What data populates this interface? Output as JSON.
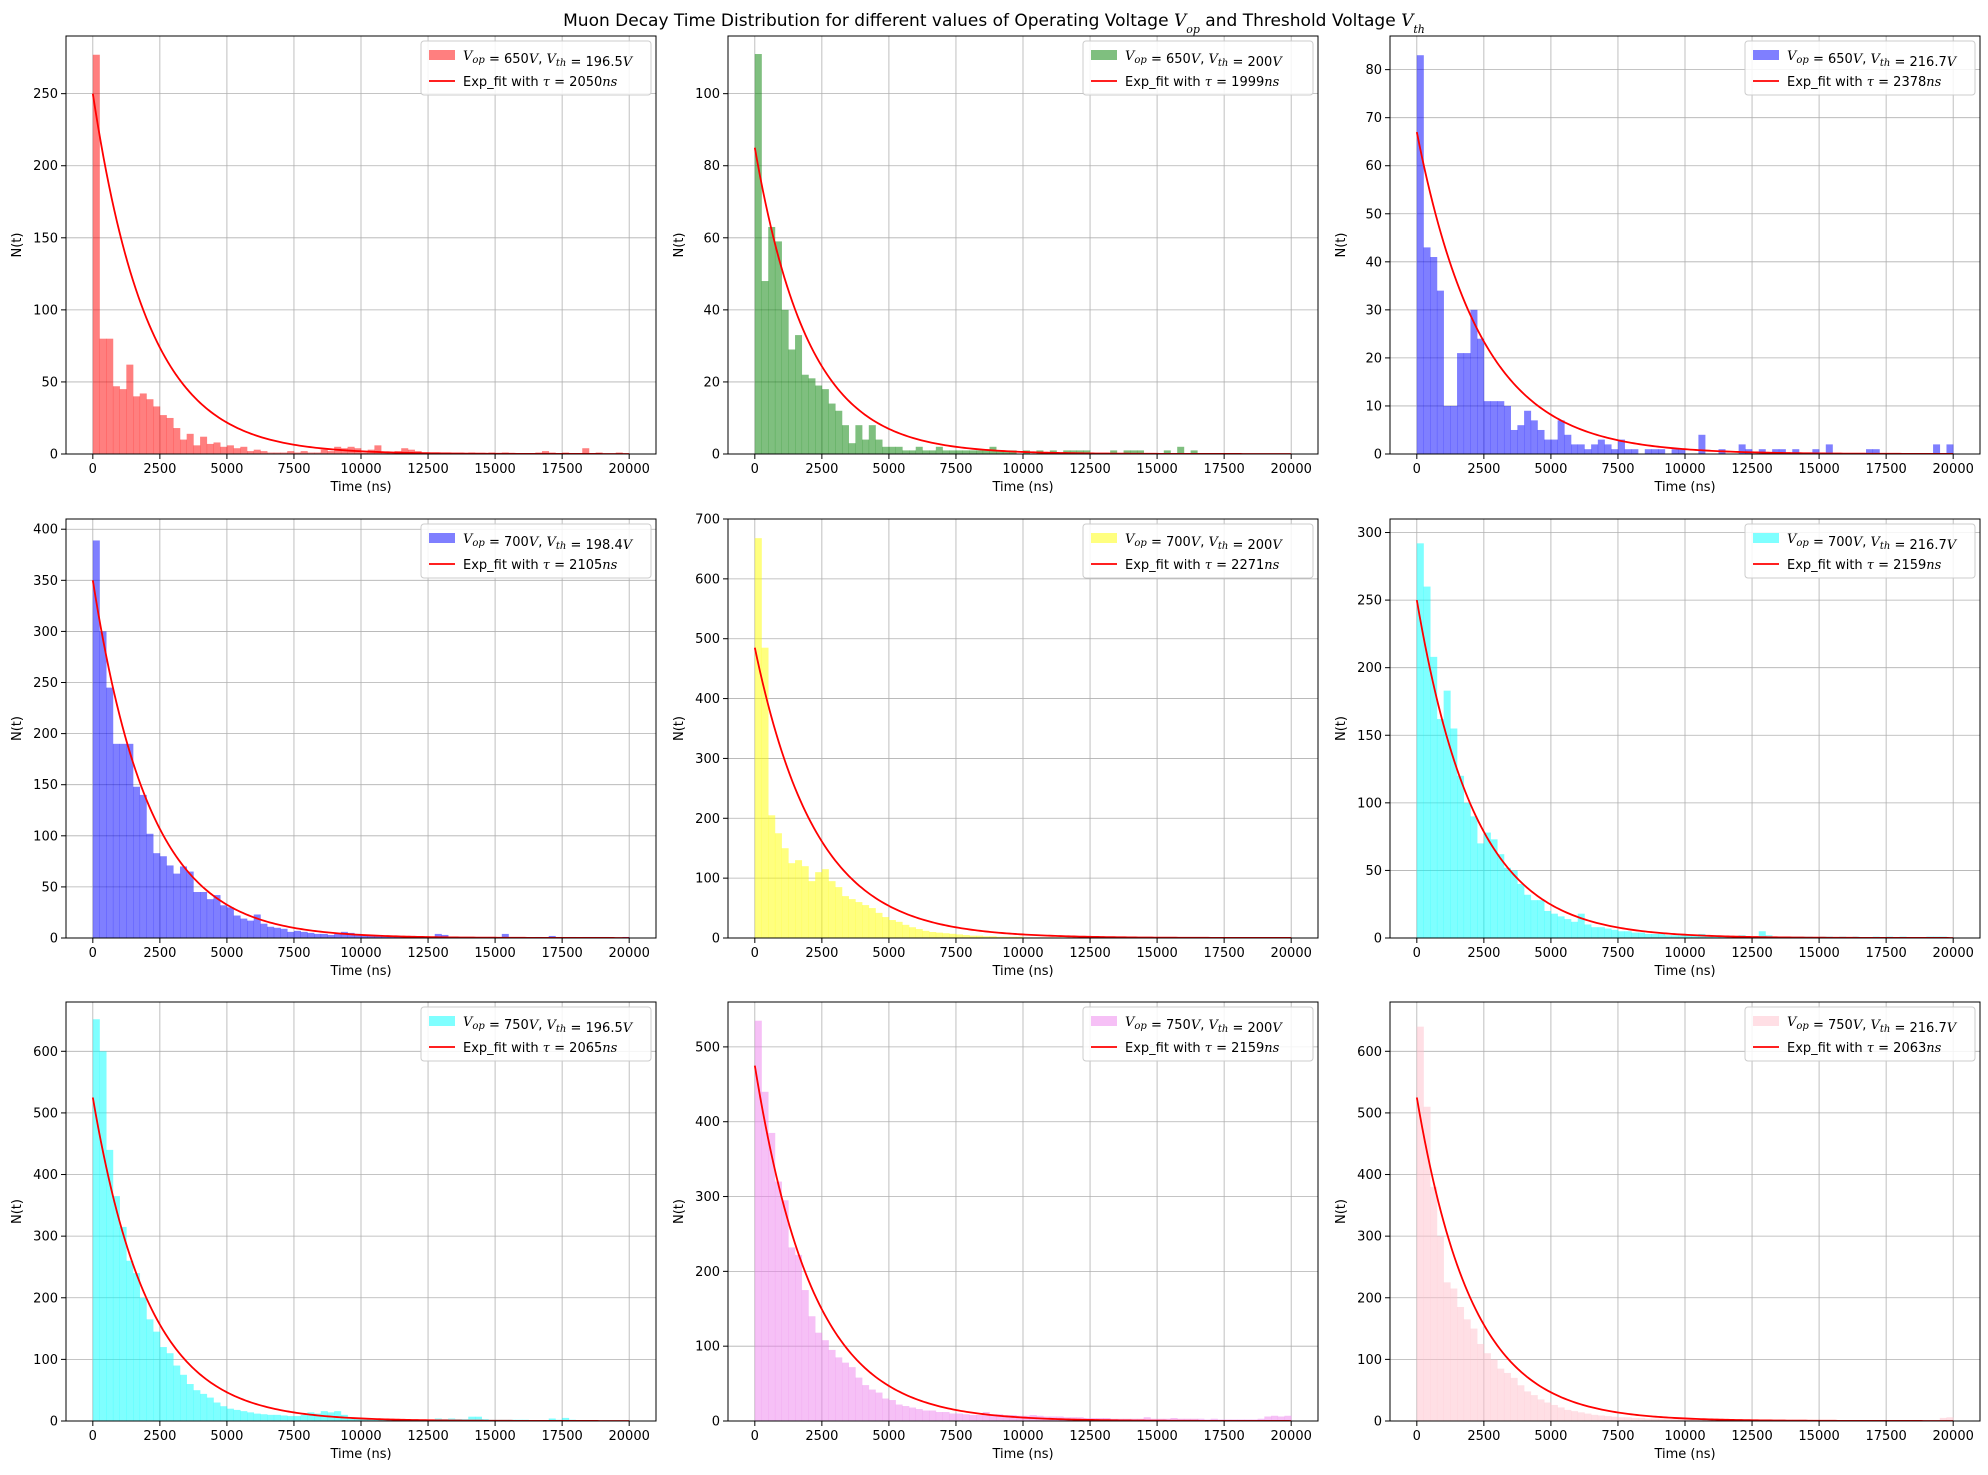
{
  "figure_title": "Muon Decay Time Distribution for different values of Operating Voltage V_op and Threshold Voltage V_th",
  "title_parts": {
    "pre": "Muon Decay Time Distribution for different values of Operating Voltage ",
    "v1": "V",
    "s1": "op",
    "mid": " and Threshold Voltage ",
    "v2": "V",
    "s2": "th"
  },
  "fit_color": "#ff0000",
  "chart_data": [
    {
      "type": "bar",
      "xlabel": "Time (ns)",
      "ylabel": "N(t)",
      "xlim": [
        -1000,
        21000
      ],
      "ylim": [
        0,
        290
      ],
      "xticks": [
        0,
        2500,
        5000,
        7500,
        10000,
        12500,
        15000,
        17500,
        20000
      ],
      "yticks": [
        0,
        50,
        100,
        150,
        200,
        250
      ],
      "grid": true,
      "legend": "top-right",
      "color": "#ff0000",
      "alpha": 0.5,
      "legend_entries": {
        "hist": {
          "vop": "650",
          "vth": "196.5"
        },
        "fit": {
          "prefix": "Exp_fit with ",
          "tau": "2050"
        }
      },
      "fit": {
        "A": 250,
        "tau": 2050
      },
      "bin_start": 0,
      "bin_width": 250,
      "values": [
        277,
        80,
        80,
        47,
        45,
        62,
        40,
        42,
        38,
        33,
        27,
        25,
        18,
        10,
        14,
        6,
        12,
        7,
        8,
        5,
        6,
        4,
        5,
        2,
        3,
        2,
        1,
        1,
        1,
        2,
        1,
        2,
        1,
        1,
        3,
        2,
        5,
        4,
        5,
        4,
        1,
        3,
        6,
        1,
        1,
        2,
        4,
        3,
        2,
        1,
        0,
        0,
        0,
        0,
        0,
        0,
        1,
        0,
        0,
        1,
        0,
        1,
        0,
        0,
        0,
        0,
        1,
        2,
        1,
        0,
        1,
        0,
        0,
        4,
        0,
        1,
        0,
        0,
        1,
        0
      ]
    },
    {
      "type": "bar",
      "xlabel": "Time (ns)",
      "ylabel": "N(t)",
      "xlim": [
        -1000,
        21000
      ],
      "ylim": [
        0,
        116
      ],
      "xticks": [
        0,
        2500,
        5000,
        7500,
        10000,
        12500,
        15000,
        17500,
        20000
      ],
      "yticks": [
        0,
        20,
        40,
        60,
        80,
        100
      ],
      "grid": true,
      "legend": "top-right",
      "color": "#008000",
      "alpha": 0.5,
      "legend_entries": {
        "hist": {
          "vop": "650",
          "vth": "200"
        },
        "fit": {
          "prefix": "Exp_fit with ",
          "tau": "1999"
        }
      },
      "fit": {
        "A": 85,
        "tau": 1999
      },
      "bin_start": 0,
      "bin_width": 250,
      "values": [
        111,
        48,
        63,
        59,
        40,
        29,
        33,
        22,
        21,
        19,
        18,
        14,
        12,
        8,
        3,
        8,
        4,
        8,
        4,
        2,
        2,
        2,
        1,
        1,
        2,
        1,
        1,
        2,
        1,
        1,
        1,
        1,
        1,
        1,
        1,
        2,
        1,
        1,
        1,
        0,
        1,
        0,
        1,
        0,
        1,
        0,
        1,
        1,
        1,
        1,
        0,
        0,
        0,
        1,
        0,
        1,
        1,
        1,
        0,
        0,
        0,
        1,
        0,
        2,
        0,
        1,
        0,
        0,
        0,
        0,
        0,
        0,
        0,
        0,
        0,
        0,
        0,
        0,
        0,
        0
      ]
    },
    {
      "type": "bar",
      "xlabel": "Time (ns)",
      "ylabel": "N(t)",
      "xlim": [
        -1000,
        21000
      ],
      "ylim": [
        0,
        87
      ],
      "xticks": [
        0,
        2500,
        5000,
        7500,
        10000,
        12500,
        15000,
        17500,
        20000
      ],
      "yticks": [
        0,
        10,
        20,
        30,
        40,
        50,
        60,
        70,
        80
      ],
      "grid": true,
      "legend": "top-right",
      "color": "#0000ff",
      "alpha": 0.5,
      "legend_entries": {
        "hist": {
          "vop": "650",
          "vth": "216.7"
        },
        "fit": {
          "prefix": "Exp_fit with ",
          "tau": "2378"
        }
      },
      "fit": {
        "A": 67,
        "tau": 2378
      },
      "bin_start": 0,
      "bin_width": 250,
      "values": [
        83,
        43,
        41,
        34,
        10,
        10,
        21,
        21,
        30,
        24,
        11,
        11,
        11,
        10,
        5,
        6,
        9,
        7,
        5,
        3,
        3,
        7,
        4,
        2,
        2,
        1,
        2,
        3,
        2,
        1,
        3,
        1,
        1,
        0,
        1,
        1,
        1,
        0,
        1,
        1,
        0,
        0,
        4,
        0,
        0,
        1,
        0,
        0,
        2,
        1,
        0,
        1,
        0,
        1,
        1,
        0,
        1,
        0,
        0,
        1,
        0,
        2,
        0,
        0,
        0,
        0,
        0,
        1,
        1,
        0,
        0,
        0,
        0,
        0,
        0,
        0,
        0,
        2,
        0,
        2
      ]
    },
    {
      "type": "bar",
      "xlabel": "Time (ns)",
      "ylabel": "N(t)",
      "xlim": [
        -1000,
        21000
      ],
      "ylim": [
        0,
        410
      ],
      "xticks": [
        0,
        2500,
        5000,
        7500,
        10000,
        12500,
        15000,
        17500,
        20000
      ],
      "yticks": [
        0,
        50,
        100,
        150,
        200,
        250,
        300,
        350,
        400
      ],
      "grid": true,
      "legend": "top-right",
      "color": "#0000ff",
      "alpha": 0.5,
      "legend_entries": {
        "hist": {
          "vop": "700",
          "vth": "198.4"
        },
        "fit": {
          "prefix": "Exp_fit with ",
          "tau": "2105"
        }
      },
      "fit": {
        "A": 350,
        "tau": 2105
      },
      "bin_start": 0,
      "bin_width": 250,
      "values": [
        389,
        300,
        245,
        190,
        190,
        190,
        148,
        140,
        102,
        83,
        80,
        71,
        63,
        70,
        65,
        45,
        45,
        38,
        42,
        32,
        30,
        22,
        19,
        17,
        23,
        14,
        11,
        10,
        9,
        6,
        7,
        6,
        5,
        4,
        4,
        3,
        4,
        6,
        5,
        4,
        3,
        3,
        2,
        2,
        2,
        1,
        1,
        2,
        1,
        1,
        1,
        4,
        3,
        1,
        1,
        1,
        0,
        1,
        0,
        1,
        0,
        4,
        0,
        0,
        0,
        0,
        1,
        0,
        2,
        1,
        0,
        1,
        0,
        1,
        1,
        1,
        1,
        0,
        0,
        1
      ]
    },
    {
      "type": "bar",
      "xlabel": "Time (ns)",
      "ylabel": "N(t)",
      "xlim": [
        -1000,
        21000
      ],
      "ylim": [
        0,
        700
      ],
      "xticks": [
        0,
        2500,
        5000,
        7500,
        10000,
        12500,
        15000,
        17500,
        20000
      ],
      "yticks": [
        0,
        100,
        200,
        300,
        400,
        500,
        600,
        700
      ],
      "grid": true,
      "legend": "top-right",
      "color": "#ffff00",
      "alpha": 0.5,
      "legend_entries": {
        "hist": {
          "vop": "700",
          "vth": "200"
        },
        "fit": {
          "prefix": "Exp_fit with ",
          "tau": "2271"
        }
      },
      "fit": {
        "A": 485,
        "tau": 2271
      },
      "bin_start": 0,
      "bin_width": 250,
      "values": [
        668,
        485,
        205,
        175,
        150,
        125,
        130,
        120,
        95,
        110,
        115,
        95,
        85,
        70,
        65,
        60,
        55,
        50,
        42,
        35,
        30,
        27,
        22,
        18,
        15,
        12,
        10,
        9,
        8,
        7,
        6,
        5,
        4,
        4,
        3,
        3,
        2,
        2,
        2,
        2,
        1,
        1,
        1,
        1,
        1,
        1,
        1,
        1,
        1,
        0,
        0,
        0,
        0,
        0,
        0,
        0,
        0,
        0,
        0,
        0,
        0,
        0,
        0,
        0,
        0,
        0,
        0,
        0,
        0,
        0,
        0,
        0,
        0,
        0,
        0,
        0,
        0,
        0,
        0,
        0
      ]
    },
    {
      "type": "bar",
      "xlabel": "Time (ns)",
      "ylabel": "N(t)",
      "xlim": [
        -1000,
        21000
      ],
      "ylim": [
        0,
        310
      ],
      "xticks": [
        0,
        2500,
        5000,
        7500,
        10000,
        12500,
        15000,
        17500,
        20000
      ],
      "yticks": [
        0,
        50,
        100,
        150,
        200,
        250,
        300
      ],
      "grid": true,
      "legend": "top-right",
      "color": "#00ffff",
      "alpha": 0.5,
      "legend_entries": {
        "hist": {
          "vop": "700",
          "vth": "216.7"
        },
        "fit": {
          "prefix": "Exp_fit with ",
          "tau": "2159"
        }
      },
      "fit": {
        "A": 250,
        "tau": 2159
      },
      "bin_start": 0,
      "bin_width": 250,
      "values": [
        292,
        260,
        208,
        162,
        183,
        155,
        120,
        100,
        90,
        70,
        78,
        73,
        62,
        52,
        50,
        40,
        32,
        28,
        28,
        20,
        18,
        16,
        14,
        12,
        18,
        10,
        8,
        8,
        7,
        6,
        5,
        5,
        4,
        4,
        3,
        3,
        3,
        2,
        2,
        2,
        2,
        2,
        3,
        2,
        2,
        1,
        1,
        1,
        2,
        1,
        1,
        5,
        2,
        1,
        1,
        1,
        1,
        1,
        1,
        0,
        1,
        1,
        0,
        1,
        0,
        1,
        0,
        0,
        1,
        0,
        1,
        0,
        1,
        0,
        0,
        0,
        1,
        1,
        1,
        0
      ]
    },
    {
      "type": "bar",
      "xlabel": "Time (ns)",
      "ylabel": "N(t)",
      "xlim": [
        -1000,
        21000
      ],
      "ylim": [
        0,
        680
      ],
      "xticks": [
        0,
        2500,
        5000,
        7500,
        10000,
        12500,
        15000,
        17500,
        20000
      ],
      "yticks": [
        0,
        100,
        200,
        300,
        400,
        500,
        600
      ],
      "grid": true,
      "legend": "top-right",
      "color": "#00ffff",
      "alpha": 0.5,
      "legend_entries": {
        "hist": {
          "vop": "750",
          "vth": "196.5"
        },
        "fit": {
          "prefix": "Exp_fit with ",
          "tau": "2065"
        }
      },
      "fit": {
        "A": 525,
        "tau": 2065
      },
      "bin_start": 0,
      "bin_width": 250,
      "values": [
        652,
        600,
        440,
        365,
        315,
        260,
        240,
        200,
        165,
        145,
        120,
        110,
        90,
        75,
        60,
        50,
        44,
        38,
        30,
        24,
        20,
        18,
        16,
        14,
        12,
        11,
        10,
        10,
        9,
        8,
        8,
        10,
        14,
        12,
        16,
        14,
        16,
        10,
        5,
        4,
        4,
        3,
        3,
        3,
        2,
        2,
        2,
        2,
        2,
        2,
        2,
        4,
        3,
        4,
        3,
        3,
        7,
        7,
        3,
        2,
        2,
        2,
        2,
        2,
        2,
        1,
        1,
        1,
        4,
        2,
        5,
        2,
        1,
        1,
        1,
        0,
        1,
        0,
        0,
        0
      ]
    },
    {
      "type": "bar",
      "xlabel": "Time (ns)",
      "ylabel": "N(t)",
      "xlim": [
        -1000,
        21000
      ],
      "ylim": [
        0,
        560
      ],
      "xticks": [
        0,
        2500,
        5000,
        7500,
        10000,
        12500,
        15000,
        17500,
        20000
      ],
      "yticks": [
        0,
        100,
        200,
        300,
        400,
        500
      ],
      "grid": true,
      "legend": "top-right",
      "color": "#ee82ee",
      "alpha": 0.5,
      "legend_entries": {
        "hist": {
          "vop": "750",
          "vth": "200"
        },
        "fit": {
          "prefix": "Exp_fit with ",
          "tau": "2159"
        }
      },
      "fit": {
        "A": 475,
        "tau": 2159
      },
      "bin_start": 0,
      "bin_width": 250,
      "values": [
        535,
        440,
        385,
        320,
        295,
        232,
        222,
        175,
        140,
        118,
        108,
        95,
        85,
        78,
        72,
        58,
        48,
        42,
        38,
        30,
        28,
        22,
        20,
        18,
        16,
        14,
        14,
        12,
        12,
        10,
        10,
        9,
        8,
        8,
        12,
        9,
        9,
        8,
        8,
        7,
        7,
        8,
        7,
        6,
        6,
        6,
        5,
        5,
        5,
        4,
        4,
        4,
        4,
        3,
        3,
        3,
        3,
        3,
        5,
        3,
        3,
        3,
        4,
        3,
        3,
        3,
        3,
        2,
        3,
        2,
        2,
        2,
        2,
        2,
        2,
        3,
        6,
        7,
        6,
        7
      ]
    },
    {
      "type": "bar",
      "xlabel": "Time (ns)",
      "ylabel": "N(t)",
      "xlim": [
        -1000,
        21000
      ],
      "ylim": [
        0,
        680
      ],
      "xticks": [
        0,
        2500,
        5000,
        7500,
        10000,
        12500,
        15000,
        17500,
        20000
      ],
      "yticks": [
        0,
        100,
        200,
        300,
        400,
        500,
        600
      ],
      "grid": true,
      "legend": "top-right",
      "color": "#ffc0cb",
      "alpha": 0.5,
      "legend_entries": {
        "hist": {
          "vop": "750",
          "vth": "216.7"
        },
        "fit": {
          "prefix": "Exp_fit with ",
          "tau": "2063"
        }
      },
      "fit": {
        "A": 525,
        "tau": 2063
      },
      "bin_start": 0,
      "bin_width": 250,
      "values": [
        640,
        510,
        380,
        300,
        225,
        215,
        185,
        165,
        150,
        125,
        110,
        100,
        85,
        78,
        70,
        58,
        48,
        42,
        35,
        30,
        26,
        22,
        18,
        16,
        14,
        12,
        10,
        9,
        8,
        7,
        6,
        6,
        5,
        5,
        4,
        4,
        4,
        3,
        3,
        3,
        3,
        3,
        3,
        3,
        3,
        2,
        2,
        2,
        2,
        2,
        2,
        2,
        2,
        2,
        2,
        2,
        2,
        2,
        2,
        1,
        1,
        1,
        1,
        1,
        1,
        1,
        1,
        1,
        1,
        1,
        1,
        1,
        1,
        1,
        1,
        1,
        1,
        1,
        5,
        6
      ]
    }
  ]
}
